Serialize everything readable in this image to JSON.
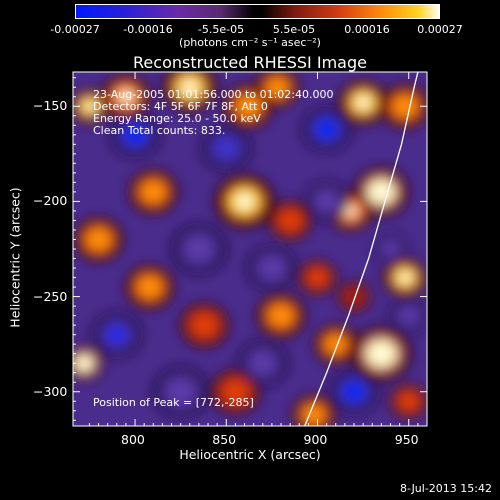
{
  "chart_data": {
    "type": "heatmap",
    "title": "Reconstructed RHESSI Image",
    "xlabel": "Heliocentric X (arcsec)",
    "ylabel": "Heliocentric Y (arcsec)",
    "xlim": [
      766,
      960
    ],
    "ylim": [
      -318,
      -132
    ],
    "x_ticks": [
      800,
      850,
      900,
      950
    ],
    "y_ticks": [
      -150,
      -200,
      -250,
      -300
    ],
    "colorbar": {
      "ticks": [
        "-0.00027",
        "-0.00016",
        "-5.5e-05",
        "5.5e-05",
        "0.00016",
        "0.00027"
      ],
      "units": "(photons cm⁻² s⁻¹ asec⁻²)",
      "range": [
        -0.00027,
        0.00027
      ]
    },
    "info_lines": [
      "23-Aug-2005 01:01:56.000 to 01:02:40.000",
      "Detectors: 4F 5F 6F 7F 8F, Att 0",
      "Energy Range: 25.0 - 50.0 keV",
      "Clean    Total counts: 833."
    ],
    "peak_label": "Position of Peak = [772,-285]",
    "peak": [
      772,
      -285
    ],
    "limb_curve": [
      [
        893,
        -318
      ],
      [
        905,
        -290
      ],
      [
        917,
        -260
      ],
      [
        928,
        -230
      ],
      [
        937,
        -200
      ],
      [
        946,
        -170
      ],
      [
        953,
        -140
      ],
      [
        955,
        -132
      ]
    ],
    "blobs": [
      {
        "x": 775,
        "y": -150,
        "v": 0.00024,
        "s": 7
      },
      {
        "x": 795,
        "y": -145,
        "v": 0.0002,
        "s": 9
      },
      {
        "x": 830,
        "y": -140,
        "v": 0.00022,
        "s": 10
      },
      {
        "x": 862,
        "y": -150,
        "v": 0.00018,
        "s": 9
      },
      {
        "x": 878,
        "y": -140,
        "v": 0.00016,
        "s": 8
      },
      {
        "x": 925,
        "y": -148,
        "v": 0.00022,
        "s": 9
      },
      {
        "x": 948,
        "y": -150,
        "v": 0.00018,
        "s": 9
      },
      {
        "x": 810,
        "y": -195,
        "v": 0.00016,
        "s": 9
      },
      {
        "x": 860,
        "y": -200,
        "v": 0.00024,
        "s": 11
      },
      {
        "x": 885,
        "y": -210,
        "v": 0.00014,
        "s": 8
      },
      {
        "x": 935,
        "y": -195,
        "v": 0.00025,
        "s": 10
      },
      {
        "x": 918,
        "y": -205,
        "v": 0.0002,
        "s": 8
      },
      {
        "x": 780,
        "y": -220,
        "v": 0.00018,
        "s": 9
      },
      {
        "x": 808,
        "y": -245,
        "v": 0.00015,
        "s": 9
      },
      {
        "x": 838,
        "y": -265,
        "v": 0.00012,
        "s": 9
      },
      {
        "x": 880,
        "y": -260,
        "v": 0.00016,
        "s": 9
      },
      {
        "x": 900,
        "y": -240,
        "v": 0.00011,
        "s": 7
      },
      {
        "x": 920,
        "y": -250,
        "v": 9e-05,
        "s": 6
      },
      {
        "x": 948,
        "y": -240,
        "v": 0.00022,
        "s": 8
      },
      {
        "x": 772,
        "y": -285,
        "v": 0.00027,
        "s": 7
      },
      {
        "x": 855,
        "y": -300,
        "v": 0.00014,
        "s": 9
      },
      {
        "x": 935,
        "y": -280,
        "v": 0.00026,
        "s": 11
      },
      {
        "x": 910,
        "y": -275,
        "v": 0.00018,
        "s": 8
      },
      {
        "x": 898,
        "y": -312,
        "v": 0.00016,
        "s": 8
      },
      {
        "x": 950,
        "y": -305,
        "v": 0.00012,
        "s": 7
      },
      {
        "x": 800,
        "y": -165,
        "v": -0.00025,
        "s": 9
      },
      {
        "x": 850,
        "y": -172,
        "v": -0.00018,
        "s": 9
      },
      {
        "x": 905,
        "y": -162,
        "v": -0.00022,
        "s": 9
      },
      {
        "x": 835,
        "y": -225,
        "v": -0.00016,
        "s": 10
      },
      {
        "x": 875,
        "y": -235,
        "v": -0.00012,
        "s": 9
      },
      {
        "x": 905,
        "y": -200,
        "v": -0.00014,
        "s": 8
      },
      {
        "x": 790,
        "y": -270,
        "v": -0.0002,
        "s": 9
      },
      {
        "x": 825,
        "y": -300,
        "v": -0.00016,
        "s": 10
      },
      {
        "x": 870,
        "y": -285,
        "v": -0.00012,
        "s": 9
      },
      {
        "x": 920,
        "y": -300,
        "v": -0.00024,
        "s": 9
      },
      {
        "x": 950,
        "y": -260,
        "v": -0.00014,
        "s": 7
      },
      {
        "x": 940,
        "y": -225,
        "v": -0.0001,
        "s": 6
      }
    ]
  },
  "footer": {
    "date": "8-Jul-2013 15:42"
  }
}
